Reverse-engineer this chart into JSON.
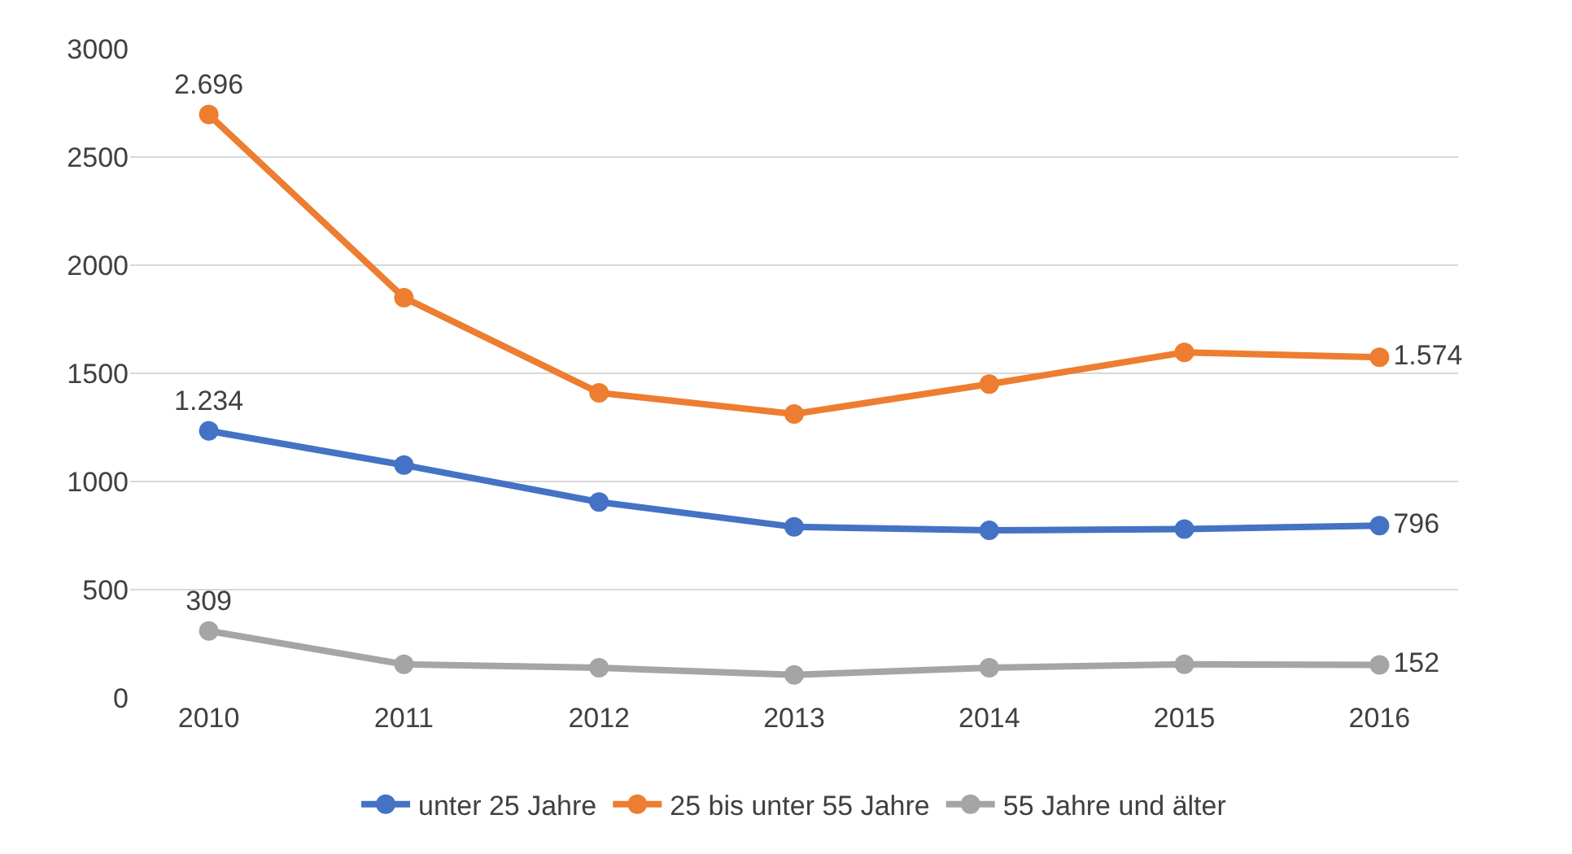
{
  "chart_data": {
    "type": "line",
    "categories": [
      "2010",
      "2011",
      "2012",
      "2013",
      "2014",
      "2015",
      "2016"
    ],
    "series": [
      {
        "name": "unter 25 Jahre",
        "color": "#4472c4",
        "values": [
          1234,
          1076,
          905,
          790,
          774,
          780,
          796
        ],
        "value_labels": [
          "1.234",
          null,
          null,
          null,
          null,
          null,
          "796"
        ]
      },
      {
        "name": "25 bis unter 55 Jahre",
        "color": "#ed7d31",
        "values": [
          2696,
          1850,
          1410,
          1312,
          1450,
          1597,
          1574
        ],
        "value_labels": [
          "2.696",
          null,
          null,
          null,
          null,
          null,
          "1.574"
        ]
      },
      {
        "name": "55 Jahre und älter",
        "color": "#a5a5a5",
        "values": [
          309,
          155,
          139,
          106,
          139,
          155,
          152
        ],
        "value_labels": [
          "309",
          null,
          null,
          null,
          null,
          null,
          "152"
        ]
      }
    ],
    "ylim": [
      0,
      3000
    ],
    "yticks": [
      0,
      500,
      1000,
      1500,
      2000,
      2500,
      3000
    ],
    "grid": "y",
    "legend": "bottom",
    "marker": "circle",
    "line_style": "solid"
  }
}
